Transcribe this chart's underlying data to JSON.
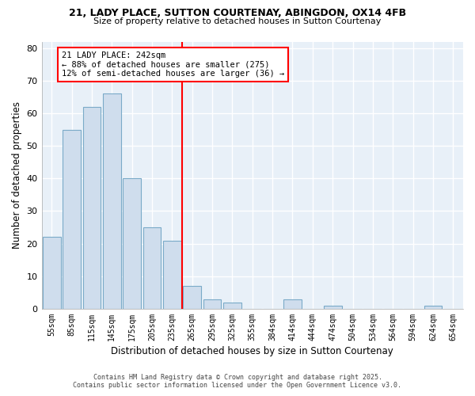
{
  "title_line1": "21, LADY PLACE, SUTTON COURTENAY, ABINGDON, OX14 4FB",
  "title_line2": "Size of property relative to detached houses in Sutton Courtenay",
  "xlabel": "Distribution of detached houses by size in Sutton Courtenay",
  "ylabel": "Number of detached properties",
  "bar_labels": [
    "55sqm",
    "85sqm",
    "115sqm",
    "145sqm",
    "175sqm",
    "205sqm",
    "235sqm",
    "265sqm",
    "295sqm",
    "325sqm",
    "355sqm",
    "384sqm",
    "414sqm",
    "444sqm",
    "474sqm",
    "504sqm",
    "534sqm",
    "564sqm",
    "594sqm",
    "624sqm",
    "654sqm"
  ],
  "bar_values": [
    22,
    55,
    62,
    66,
    40,
    25,
    21,
    7,
    3,
    2,
    0,
    0,
    3,
    0,
    1,
    0,
    0,
    0,
    0,
    1,
    0
  ],
  "bar_color": "#cfdded",
  "bar_edge_color": "#7aaac8",
  "vline_x": 6.5,
  "vline_color": "red",
  "annotation_title": "21 LADY PLACE: 242sqm",
  "annotation_line1": "← 88% of detached houses are smaller (275)",
  "annotation_line2": "12% of semi-detached houses are larger (36) →",
  "annotation_box_color": "red",
  "ylim": [
    0,
    82
  ],
  "yticks": [
    0,
    10,
    20,
    30,
    40,
    50,
    60,
    70,
    80
  ],
  "footnote1": "Contains HM Land Registry data © Crown copyright and database right 2025.",
  "footnote2": "Contains public sector information licensed under the Open Government Licence v3.0.",
  "bg_color": "#ffffff",
  "plot_bg_color": "#e8f0f8",
  "grid_color": "#ffffff"
}
